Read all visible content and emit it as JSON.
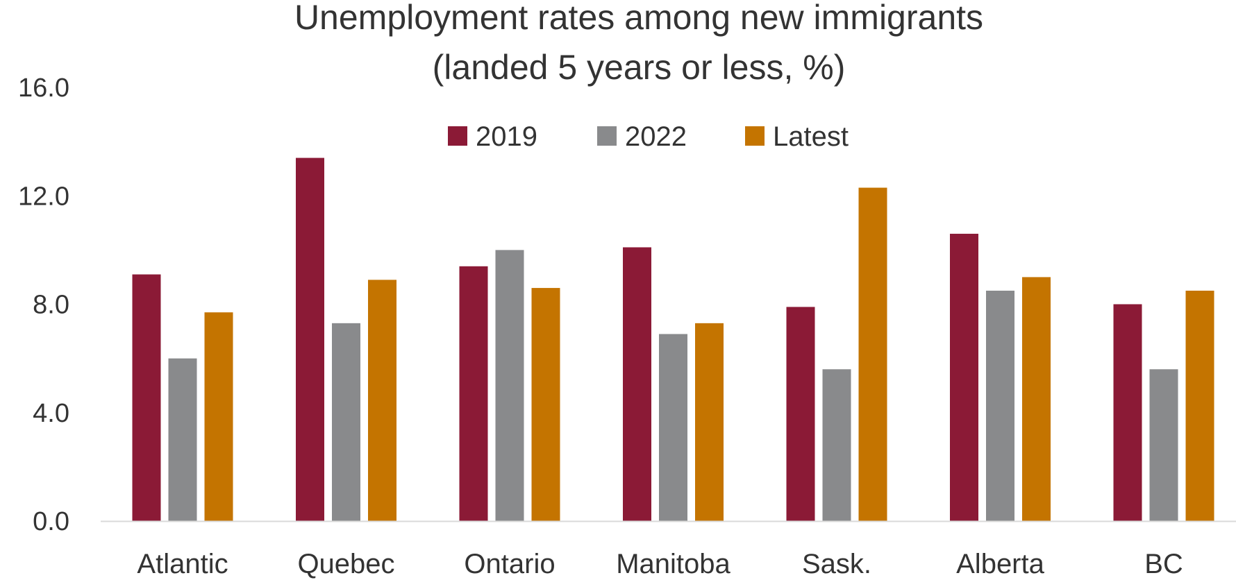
{
  "chart_data": {
    "type": "bar",
    "title_lines": [
      "Unemployment rates among new immigrants",
      "(landed 5 years or less, %)"
    ],
    "xlabel": "",
    "ylabel": "",
    "categories": [
      "Atlantic",
      "Quebec",
      "Ontario",
      "Manitoba",
      "Sask.",
      "Alberta",
      "BC"
    ],
    "series": [
      {
        "name": "2019",
        "color": "#8B1A36",
        "values": [
          9.1,
          13.4,
          9.4,
          10.1,
          7.9,
          10.6,
          8.0
        ]
      },
      {
        "name": "2022",
        "color": "#898A8C",
        "values": [
          6.0,
          7.3,
          10.0,
          6.9,
          5.6,
          8.5,
          5.6
        ]
      },
      {
        "name": "Latest",
        "color": "#C47400",
        "values": [
          7.7,
          8.9,
          8.6,
          7.3,
          12.3,
          9.0,
          8.5
        ]
      }
    ],
    "ylim": [
      0,
      16
    ],
    "yticks": [
      "0.0",
      "4.0",
      "8.0",
      "12.0",
      "16.0"
    ],
    "grid": false,
    "legend_position": "top-center"
  }
}
